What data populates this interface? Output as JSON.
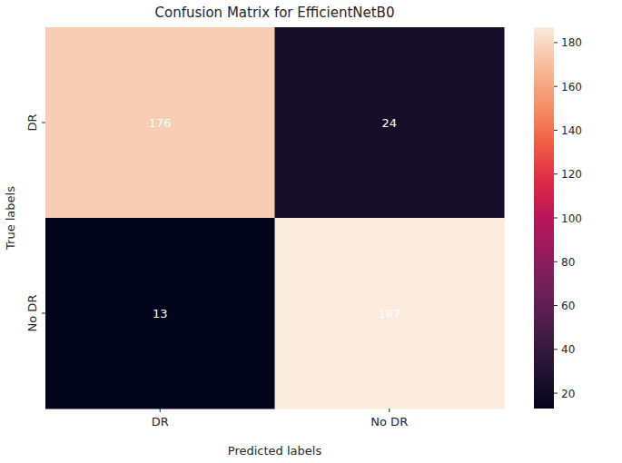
{
  "chart_data": {
    "type": "heatmap",
    "title": "Confusion Matrix for EfficientNetB0",
    "x_label": "Predicted labels",
    "y_label": "True labels",
    "x_categories": [
      "DR",
      "No DR"
    ],
    "y_categories": [
      "DR",
      "No DR"
    ],
    "cells": [
      [
        176,
        24
      ],
      [
        13,
        187
      ]
    ],
    "data_labels": true,
    "colorbar_range": [
      13,
      187
    ],
    "colorbar_ticks": [
      20,
      40,
      60,
      80,
      100,
      120,
      140,
      160,
      180
    ]
  }
}
